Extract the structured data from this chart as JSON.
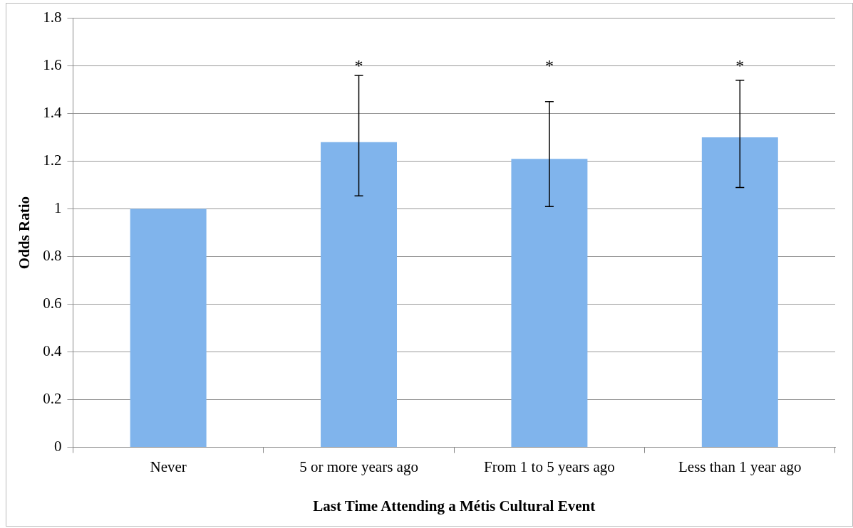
{
  "chart_data": {
    "type": "bar",
    "categories": [
      "Never",
      "5 or more years ago",
      "From 1 to 5 years ago",
      "Less than 1 year ago"
    ],
    "values": [
      1.0,
      1.28,
      1.21,
      1.3
    ],
    "errors": [
      null,
      [
        1.055,
        1.56
      ],
      [
        1.01,
        1.45
      ],
      [
        1.09,
        1.54
      ]
    ],
    "color": "#80b4ec",
    "xlabel": "Last Time Attending a Métis Cultural Event",
    "ylabel": "Odds Ratio",
    "ylim": [
      0,
      1.8
    ],
    "yticks": [
      0,
      0.2,
      0.4,
      0.6,
      0.8,
      1,
      1.2,
      1.4,
      1.6,
      1.8
    ],
    "grid": "y",
    "legend": false,
    "annotations": [
      "*",
      "*",
      "*"
    ]
  }
}
